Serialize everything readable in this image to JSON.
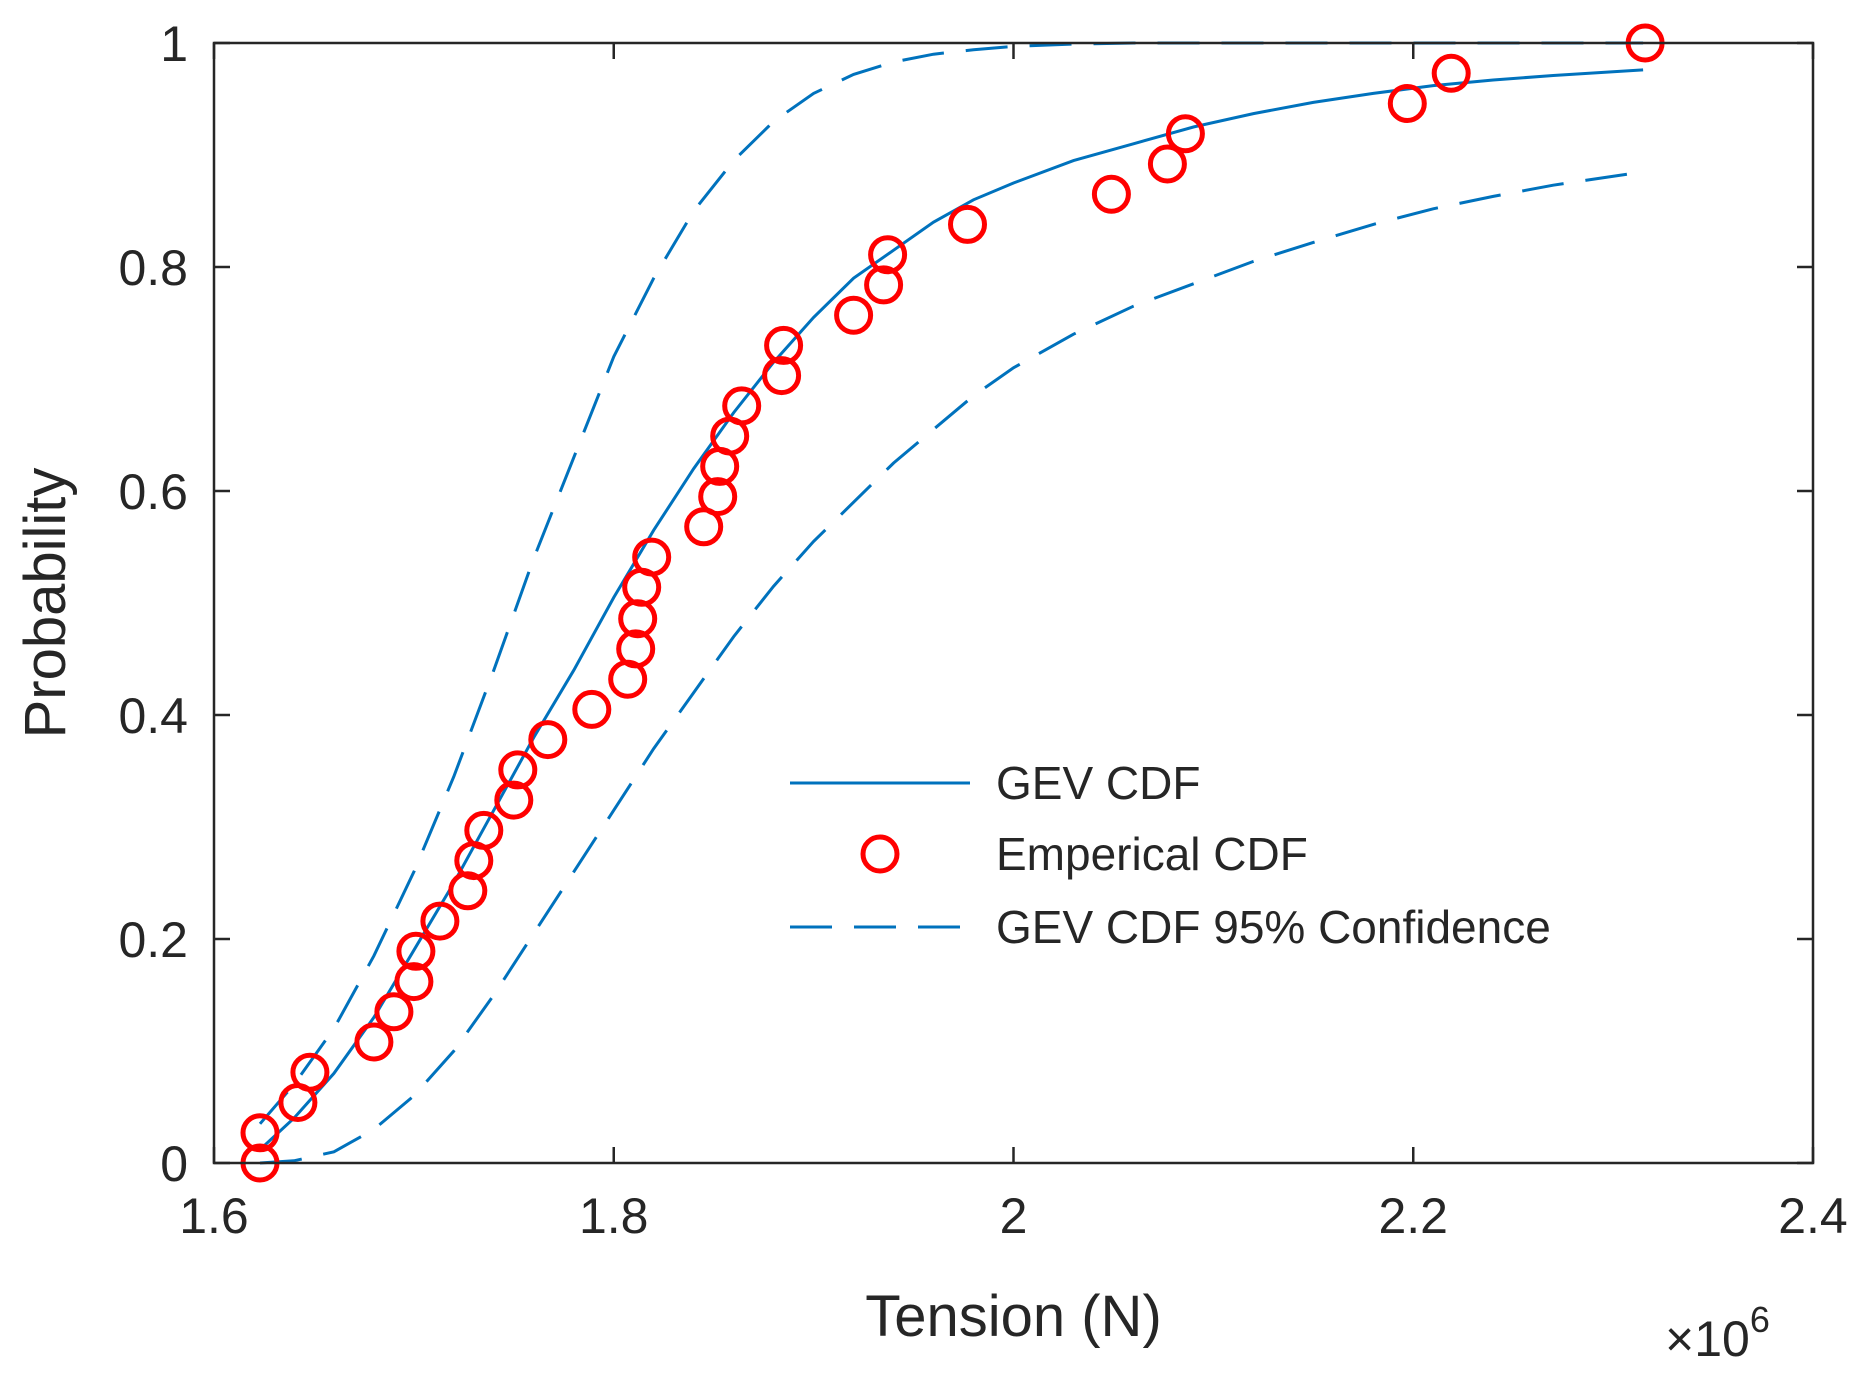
{
  "chart_data": {
    "type": "line",
    "xlabel": "Tension (N)",
    "ylabel": "Probability",
    "x_exponent_label": "×10",
    "x_exponent_power": "6",
    "x_multiplier": 1000000,
    "xlim": [
      1.6,
      2.4
    ],
    "ylim": [
      0,
      1
    ],
    "xticks": [
      1.6,
      1.8,
      2.0,
      2.2,
      2.4
    ],
    "xtick_labels": [
      "1.6",
      "1.8",
      "2",
      "2.2",
      "2.4"
    ],
    "yticks": [
      0,
      0.2,
      0.4,
      0.6,
      0.8,
      1
    ],
    "ytick_labels": [
      "0",
      "0.2",
      "0.4",
      "0.6",
      "0.8",
      "1"
    ],
    "grid": false,
    "box": true,
    "legend_position": "center-right",
    "colors": {
      "fit": "#0072BD",
      "empirical": "#FF0000",
      "axes": "#262626"
    },
    "series": [
      {
        "name": "GEV CDF",
        "style": "solid",
        "x": [
          1.623,
          1.64,
          1.66,
          1.68,
          1.7,
          1.72,
          1.74,
          1.76,
          1.78,
          1.8,
          1.82,
          1.84,
          1.86,
          1.88,
          1.9,
          1.92,
          1.94,
          1.96,
          1.98,
          2.0,
          2.03,
          2.06,
          2.09,
          2.12,
          2.15,
          2.18,
          2.21,
          2.24,
          2.27,
          2.315
        ],
        "y": [
          0.012,
          0.04,
          0.08,
          0.13,
          0.19,
          0.25,
          0.315,
          0.38,
          0.44,
          0.505,
          0.565,
          0.62,
          0.67,
          0.715,
          0.755,
          0.79,
          0.815,
          0.84,
          0.86,
          0.875,
          0.895,
          0.91,
          0.925,
          0.937,
          0.947,
          0.955,
          0.962,
          0.967,
          0.971,
          0.976
        ]
      },
      {
        "name": "Emperical CDF",
        "style": "circle",
        "x": [
          1.623,
          1.623,
          1.642,
          1.648,
          1.68,
          1.69,
          1.7,
          1.701,
          1.713,
          1.727,
          1.73,
          1.735,
          1.75,
          1.752,
          1.767,
          1.789,
          1.807,
          1.811,
          1.812,
          1.814,
          1.819,
          1.845,
          1.852,
          1.853,
          1.858,
          1.864,
          1.884,
          1.885,
          1.92,
          1.935,
          1.937,
          1.977,
          2.049,
          2.077,
          2.086,
          2.197,
          2.219,
          2.316
        ],
        "y": [
          0.0,
          0.027,
          0.054,
          0.081,
          0.108,
          0.135,
          0.162,
          0.189,
          0.216,
          0.243,
          0.27,
          0.297,
          0.324,
          0.351,
          0.378,
          0.405,
          0.432,
          0.459,
          0.486,
          0.514,
          0.541,
          0.568,
          0.595,
          0.622,
          0.649,
          0.676,
          0.703,
          0.73,
          0.757,
          0.784,
          0.811,
          0.838,
          0.865,
          0.892,
          0.919,
          0.946,
          0.973,
          1.0
        ]
      },
      {
        "name": "GEV CDF 95% Confidence",
        "style": "dashed",
        "x": [
          1.623,
          1.64,
          1.66,
          1.68,
          1.7,
          1.72,
          1.74,
          1.76,
          1.78,
          1.8,
          1.82,
          1.84,
          1.86,
          1.88,
          1.9,
          1.92,
          1.94,
          1.96,
          1.98,
          2.0,
          2.03,
          2.06,
          2.09,
          2.12,
          2.15,
          2.18,
          2.21,
          2.24,
          2.27,
          2.315
        ],
        "y": [
          0.035,
          0.07,
          0.12,
          0.185,
          0.26,
          0.345,
          0.44,
          0.54,
          0.63,
          0.72,
          0.79,
          0.85,
          0.895,
          0.93,
          0.955,
          0.972,
          0.983,
          0.99,
          0.994,
          0.997,
          0.999,
          1.0,
          1.0,
          1.0,
          1.0,
          1.0,
          1.0,
          1.0,
          1.0,
          1.0
        ],
        "y_lower": [
          0.0,
          0.002,
          0.01,
          0.03,
          0.06,
          0.1,
          0.15,
          0.205,
          0.26,
          0.315,
          0.37,
          0.42,
          0.47,
          0.515,
          0.555,
          0.59,
          0.625,
          0.655,
          0.685,
          0.71,
          0.74,
          0.765,
          0.785,
          0.805,
          0.822,
          0.838,
          0.852,
          0.863,
          0.873,
          0.885
        ]
      }
    ]
  }
}
